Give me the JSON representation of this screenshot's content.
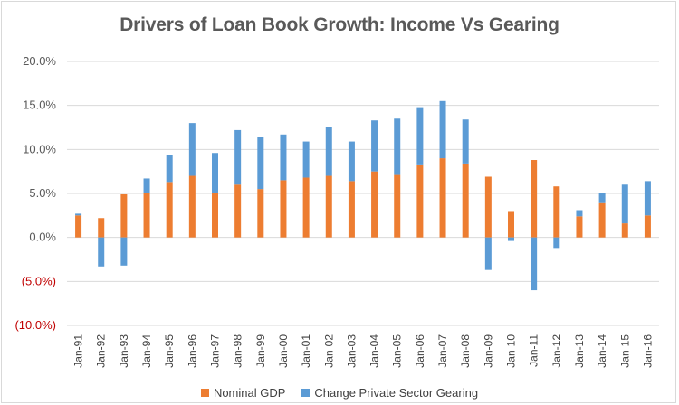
{
  "chart_data": {
    "type": "bar",
    "stacked": true,
    "title": "Drivers of Loan Book Growth: Income Vs Gearing",
    "xlabel": "",
    "ylabel": "",
    "ylim": [
      -10,
      20
    ],
    "yticks": [
      20,
      15,
      10,
      5,
      0,
      -5,
      -10
    ],
    "ytick_labels": [
      "20.0%",
      "15.0%",
      "10.0%",
      "5.0%",
      "0.0%",
      "(5.0%)",
      "(10.0%)"
    ],
    "grid": true,
    "legend_position": "bottom",
    "categories": [
      "Jan-91",
      "Jan-92",
      "Jan-93",
      "Jan-94",
      "Jan-95",
      "Jan-96",
      "Jan-97",
      "Jan-98",
      "Jan-99",
      "Jan-00",
      "Jan-01",
      "Jan-02",
      "Jan-03",
      "Jan-04",
      "Jan-05",
      "Jan-06",
      "Jan-07",
      "Jan-08",
      "Jan-09",
      "Jan-10",
      "Jan-11",
      "Jan-12",
      "Jan-13",
      "Jan-14",
      "Jan-15",
      "Jan-16"
    ],
    "series": [
      {
        "name": "Nominal GDP",
        "color": "#ed7d31",
        "values": [
          2.5,
          2.2,
          4.9,
          5.1,
          6.3,
          7.0,
          5.1,
          6.0,
          5.5,
          6.5,
          6.8,
          7.0,
          6.4,
          7.5,
          7.1,
          8.3,
          9.0,
          8.4,
          6.9,
          3.0,
          8.8,
          5.8,
          2.4,
          4.0,
          1.6,
          2.5
        ]
      },
      {
        "name": "Change Private Sector Gearing",
        "color": "#5b9bd5",
        "values": [
          0.2,
          -3.3,
          -3.2,
          1.6,
          3.1,
          6.0,
          4.5,
          6.2,
          5.9,
          5.2,
          4.1,
          5.5,
          4.5,
          5.8,
          6.4,
          6.5,
          6.5,
          5.0,
          -3.7,
          -0.4,
          -6.0,
          -1.2,
          0.7,
          1.1,
          4.4,
          3.9
        ]
      }
    ]
  }
}
